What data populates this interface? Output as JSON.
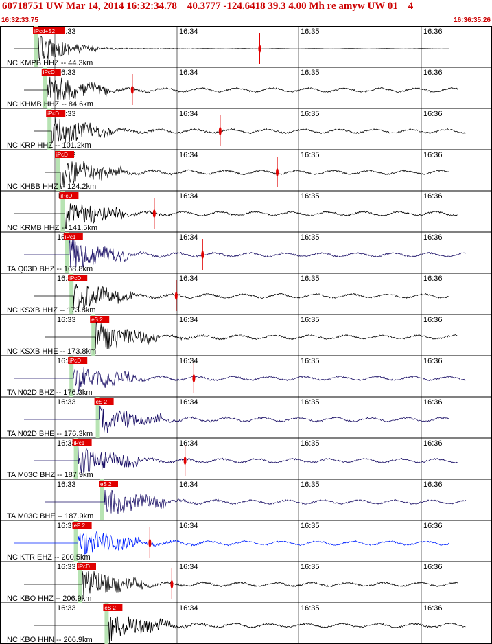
{
  "header": {
    "title": "60718751 UW Mar 14, 2014 16:32:34.78    40.3777 -124.6418 39.3 4.00 Mh re amyw UW 01    4",
    "start_time": "16:32:33.75",
    "end_time": "16:36:35.26"
  },
  "chart_data": {
    "type": "line",
    "time_ticks": [
      "16:33",
      "16:34",
      "16:35",
      "16:36"
    ],
    "time_range": [
      "16:32:33.75",
      "16:36:35.26"
    ],
    "traces": [
      {
        "label": "NC KMPB HHZ -- 44.3km",
        "color": "#000000",
        "picks": [
          {
            "label": "iPcd+S2",
            "time_frac": 0.05
          }
        ],
        "red_marker_frac": 0.56
      },
      {
        "label": "NC KHMB HHZ -- 84.6km",
        "color": "#000000",
        "picks": [
          {
            "label": "iPcD",
            "time_frac": 0.07
          }
        ],
        "red_marker_frac": 0.27
      },
      {
        "label": "NC KRP HHZ -- 101.2km",
        "color": "#000000",
        "picks": [
          {
            "label": "iPcD",
            "time_frac": 0.08
          }
        ],
        "red_marker_frac": 0.47
      },
      {
        "label": "NC KHBB HHZ -- 124.2km",
        "color": "#000000",
        "picks": [
          {
            "label": "iPcD",
            "time_frac": 0.1
          }
        ],
        "red_marker_frac": 0.6
      },
      {
        "label": "NC KRMB HHZ -- 141.5km",
        "color": "#000000",
        "picks": [
          {
            "label": "iPcD",
            "time_frac": 0.11
          }
        ],
        "red_marker_frac": 0.32
      },
      {
        "label": "TA Q03D BHZ -- 168.8km",
        "color": "#1a0f66",
        "picks": [
          {
            "label": "iPc1",
            "time_frac": 0.12
          }
        ],
        "red_marker_frac": 0.43
      },
      {
        "label": "NC KSXB HHZ -- 173.8km",
        "color": "#000000",
        "picks": [
          {
            "label": "iPcD",
            "time_frac": 0.13
          }
        ],
        "red_marker_frac": 0.37
      },
      {
        "label": "NC KSXB HHE -- 173.8km",
        "color": "#000000",
        "picks": [
          {
            "label": "eS 2",
            "time_frac": 0.18
          }
        ],
        "red_marker_frac": null
      },
      {
        "label": "TA N02D BHZ -- 176.3km",
        "color": "#1a0f66",
        "picks": [
          {
            "label": "iPcD",
            "time_frac": 0.13
          }
        ],
        "red_marker_frac": 0.41
      },
      {
        "label": "TA N02D BHE -- 176.3km",
        "color": "#1a0f66",
        "picks": [
          {
            "label": "eS 2",
            "time_frac": 0.19
          }
        ],
        "red_marker_frac": null
      },
      {
        "label": "TA M03C BHZ -- 187.9km",
        "color": "#1a0f66",
        "picks": [
          {
            "label": "iPc1",
            "time_frac": 0.14
          }
        ],
        "red_marker_frac": 0.39
      },
      {
        "label": "TA M03C BHE -- 187.9km",
        "color": "#1a0f66",
        "picks": [
          {
            "label": "eS 2",
            "time_frac": 0.2
          }
        ],
        "red_marker_frac": null
      },
      {
        "label": "NC KTR EHZ -- 200.5km",
        "color": "#0022ff",
        "picks": [
          {
            "label": "eP 2",
            "time_frac": 0.14
          }
        ],
        "red_marker_frac": 0.31
      },
      {
        "label": "NC KBO HHZ -- 206.9km",
        "color": "#000000",
        "picks": [
          {
            "label": "iPcD",
            "time_frac": 0.15
          }
        ],
        "red_marker_frac": 0.36
      },
      {
        "label": "NC KBO HHN -- 206.9km",
        "color": "#000000",
        "picks": [
          {
            "label": "eS 2",
            "time_frac": 0.21
          }
        ],
        "red_marker_frac": null
      }
    ]
  }
}
